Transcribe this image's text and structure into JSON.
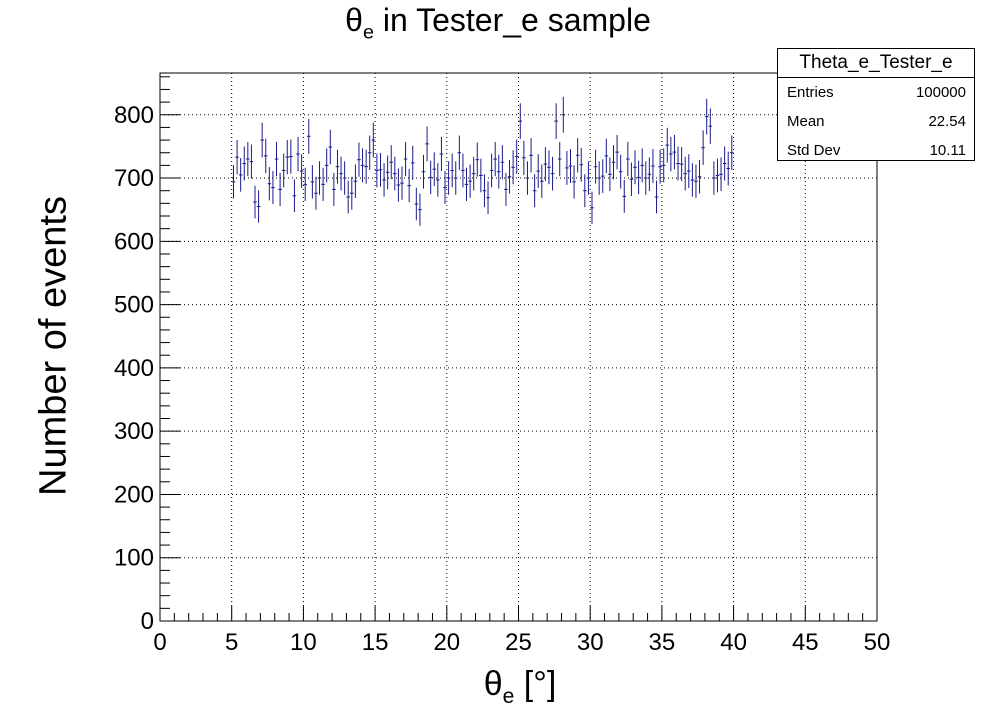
{
  "chart_data": {
    "type": "scatter",
    "title_symbol": "θ",
    "title_sub": "e",
    "title_rest": " in Tester_e sample",
    "xlabel_symbol": "θ",
    "xlabel_sub": "e",
    "xlabel_rest": " [°]",
    "ylabel": "Number of events",
    "xlim": [
      0,
      50
    ],
    "ylim": [
      0,
      866
    ],
    "xticks": [
      0,
      5,
      10,
      15,
      20,
      25,
      30,
      35,
      40,
      45,
      50
    ],
    "yticks": [
      0,
      100,
      200,
      300,
      400,
      500,
      600,
      700,
      800
    ],
    "grid": true,
    "marker_color": "#1a1a8c",
    "stats": {
      "name": "Theta_e_Tester_e",
      "entries_label": "Entries",
      "entries": "100000",
      "mean_label": "Mean",
      "mean": "22.54",
      "stddev_label": "Std Dev",
      "stddev": "10.11"
    },
    "bin_width": 0.25,
    "x": [
      5.125,
      5.375,
      5.625,
      5.875,
      6.125,
      6.375,
      6.625,
      6.875,
      7.125,
      7.375,
      7.625,
      7.875,
      8.125,
      8.375,
      8.625,
      8.875,
      9.125,
      9.375,
      9.625,
      9.875,
      10.125,
      10.375,
      10.625,
      10.875,
      11.125,
      11.375,
      11.625,
      11.875,
      12.125,
      12.375,
      12.625,
      12.875,
      13.125,
      13.375,
      13.625,
      13.875,
      14.125,
      14.375,
      14.625,
      14.875,
      15.125,
      15.375,
      15.625,
      15.875,
      16.125,
      16.375,
      16.625,
      16.875,
      17.125,
      17.375,
      17.625,
      17.875,
      18.125,
      18.375,
      18.625,
      18.875,
      19.125,
      19.375,
      19.625,
      19.875,
      20.125,
      20.375,
      20.625,
      20.875,
      21.125,
      21.375,
      21.625,
      21.875,
      22.125,
      22.375,
      22.625,
      22.875,
      23.125,
      23.375,
      23.625,
      23.875,
      24.125,
      24.375,
      24.625,
      24.875,
      25.125,
      25.375,
      25.625,
      25.875,
      26.125,
      26.375,
      26.625,
      26.875,
      27.125,
      27.375,
      27.625,
      27.875,
      28.125,
      28.375,
      28.625,
      28.875,
      29.125,
      29.375,
      29.625,
      29.875,
      30.125,
      30.375,
      30.625,
      30.875,
      31.125,
      31.375,
      31.625,
      31.875,
      32.125,
      32.375,
      32.625,
      32.875,
      33.125,
      33.375,
      33.625,
      33.875,
      34.125,
      34.375,
      34.625,
      34.875,
      35.125,
      35.375,
      35.625,
      35.875,
      36.125,
      36.375,
      36.625,
      36.875,
      37.125,
      37.375,
      37.625,
      37.875,
      38.125,
      38.375,
      38.625,
      38.875,
      39.125,
      39.375,
      39.625,
      39.875
    ],
    "values": [
      694,
      733,
      705,
      723,
      730,
      726,
      662,
      655,
      760,
      735,
      691,
      685,
      730,
      682,
      712,
      733,
      734,
      672,
      738,
      711,
      690,
      766,
      694,
      676,
      700,
      690,
      720,
      749,
      682,
      718,
      707,
      700,
      670,
      676,
      695,
      729,
      720,
      718,
      740,
      760,
      712,
      713,
      697,
      709,
      725,
      707,
      689,
      692,
      730,
      688,
      724,
      659,
      650,
      710,
      754,
      701,
      714,
      697,
      738,
      685,
      700,
      712,
      700,
      740,
      712,
      690,
      695,
      707,
      729,
      704,
      680,
      669,
      712,
      730,
      710,
      725,
      682,
      702,
      717,
      734,
      790,
      732,
      700,
      736,
      680,
      711,
      695,
      722,
      717,
      707,
      790,
      730,
      800,
      716,
      719,
      694,
      736,
      721,
      680,
      700,
      653,
      718,
      700,
      703,
      735,
      706,
      725,
      741,
      710,
      671,
      730,
      698,
      717,
      701,
      720,
      700,
      706,
      719,
      670,
      718,
      720,
      752,
      738,
      741,
      723,
      722,
      707,
      711,
      697,
      695,
      702,
      748,
      797,
      782,
      700,
      704,
      706,
      723,
      715,
      740
    ]
  }
}
